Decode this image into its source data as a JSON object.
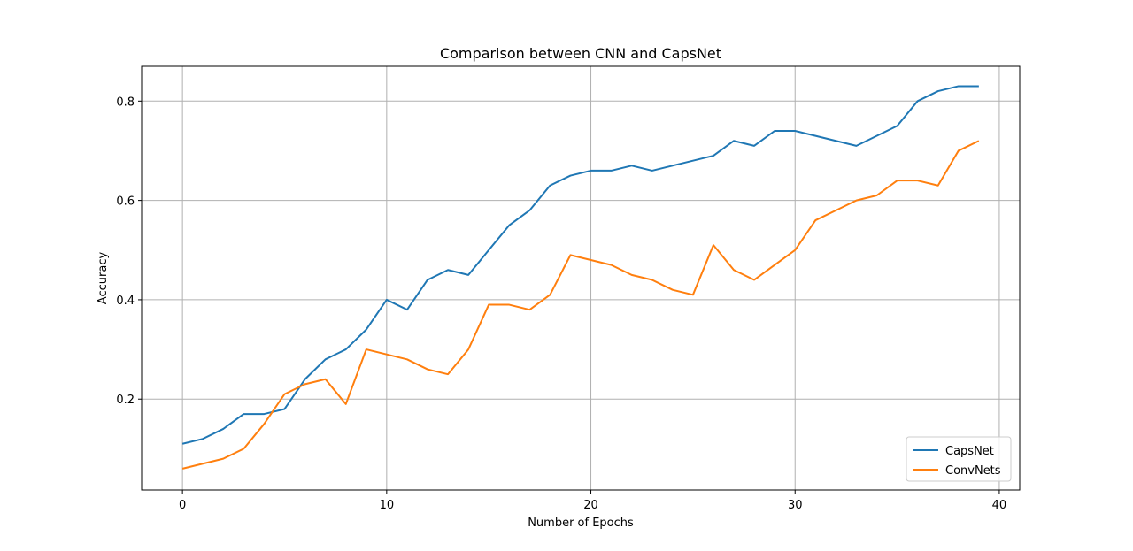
{
  "chart_data": {
    "type": "line",
    "title": "Comparison between CNN and CapsNet",
    "xlabel": "Number of Epochs",
    "ylabel": "Accuracy",
    "xlim": [
      -2,
      41
    ],
    "ylim": [
      0.017,
      0.87
    ],
    "xticks": [
      0,
      10,
      20,
      30,
      40
    ],
    "yticks": [
      0.2,
      0.4,
      0.6,
      0.8
    ],
    "grid": true,
    "legend_position": "lower-right",
    "x": [
      0,
      1,
      2,
      3,
      4,
      5,
      6,
      7,
      8,
      9,
      10,
      11,
      12,
      13,
      14,
      15,
      16,
      17,
      18,
      19,
      20,
      21,
      22,
      23,
      24,
      25,
      26,
      27,
      28,
      29,
      30,
      31,
      32,
      33,
      34,
      35,
      36,
      37,
      38,
      39
    ],
    "series": [
      {
        "name": "CapsNet",
        "color": "#1f77b4",
        "values": [
          0.11,
          0.12,
          0.14,
          0.17,
          0.17,
          0.18,
          0.24,
          0.28,
          0.3,
          0.34,
          0.4,
          0.38,
          0.44,
          0.46,
          0.45,
          0.5,
          0.55,
          0.58,
          0.63,
          0.65,
          0.66,
          0.66,
          0.67,
          0.66,
          0.67,
          0.68,
          0.69,
          0.72,
          0.71,
          0.74,
          0.74,
          0.73,
          0.72,
          0.71,
          0.73,
          0.75,
          0.8,
          0.82,
          0.83,
          0.83
        ]
      },
      {
        "name": "ConvNets",
        "color": "#ff7f0e",
        "values": [
          0.06,
          0.07,
          0.08,
          0.1,
          0.15,
          0.21,
          0.23,
          0.24,
          0.19,
          0.3,
          0.29,
          0.28,
          0.26,
          0.25,
          0.3,
          0.39,
          0.39,
          0.38,
          0.41,
          0.49,
          0.48,
          0.47,
          0.45,
          0.44,
          0.42,
          0.41,
          0.51,
          0.46,
          0.44,
          0.47,
          0.5,
          0.56,
          0.58,
          0.6,
          0.61,
          0.64,
          0.64,
          0.63,
          0.7,
          0.72
        ]
      }
    ]
  }
}
